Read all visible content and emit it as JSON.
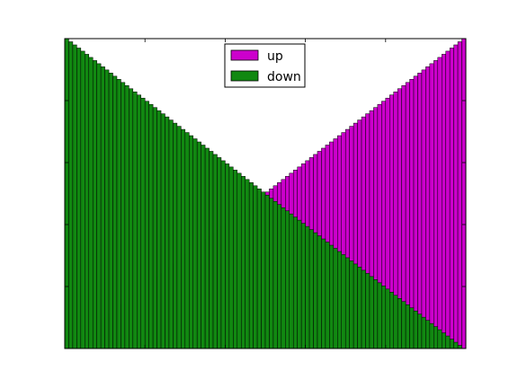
{
  "chart_data": {
    "type": "bar",
    "stacked": false,
    "n_bars": 100,
    "x": {
      "range": [
        0,
        100
      ],
      "tick_labels": false,
      "ticks": [
        0,
        20,
        40,
        60,
        80,
        100
      ]
    },
    "y": {
      "range": [
        0,
        1
      ],
      "tick_labels": false,
      "ticks": [
        0,
        0.2,
        0.4,
        0.6,
        0.8,
        1.0
      ]
    },
    "grid": false,
    "legend": {
      "placement": "upper-center"
    },
    "series": [
      {
        "name": "up",
        "color": "#cc00cc",
        "start": 0,
        "end": 1,
        "edge_color": "#000000"
      },
      {
        "name": "down",
        "color": "#118811",
        "start": 1,
        "end": 0,
        "edge_color": "#000000"
      }
    ]
  }
}
